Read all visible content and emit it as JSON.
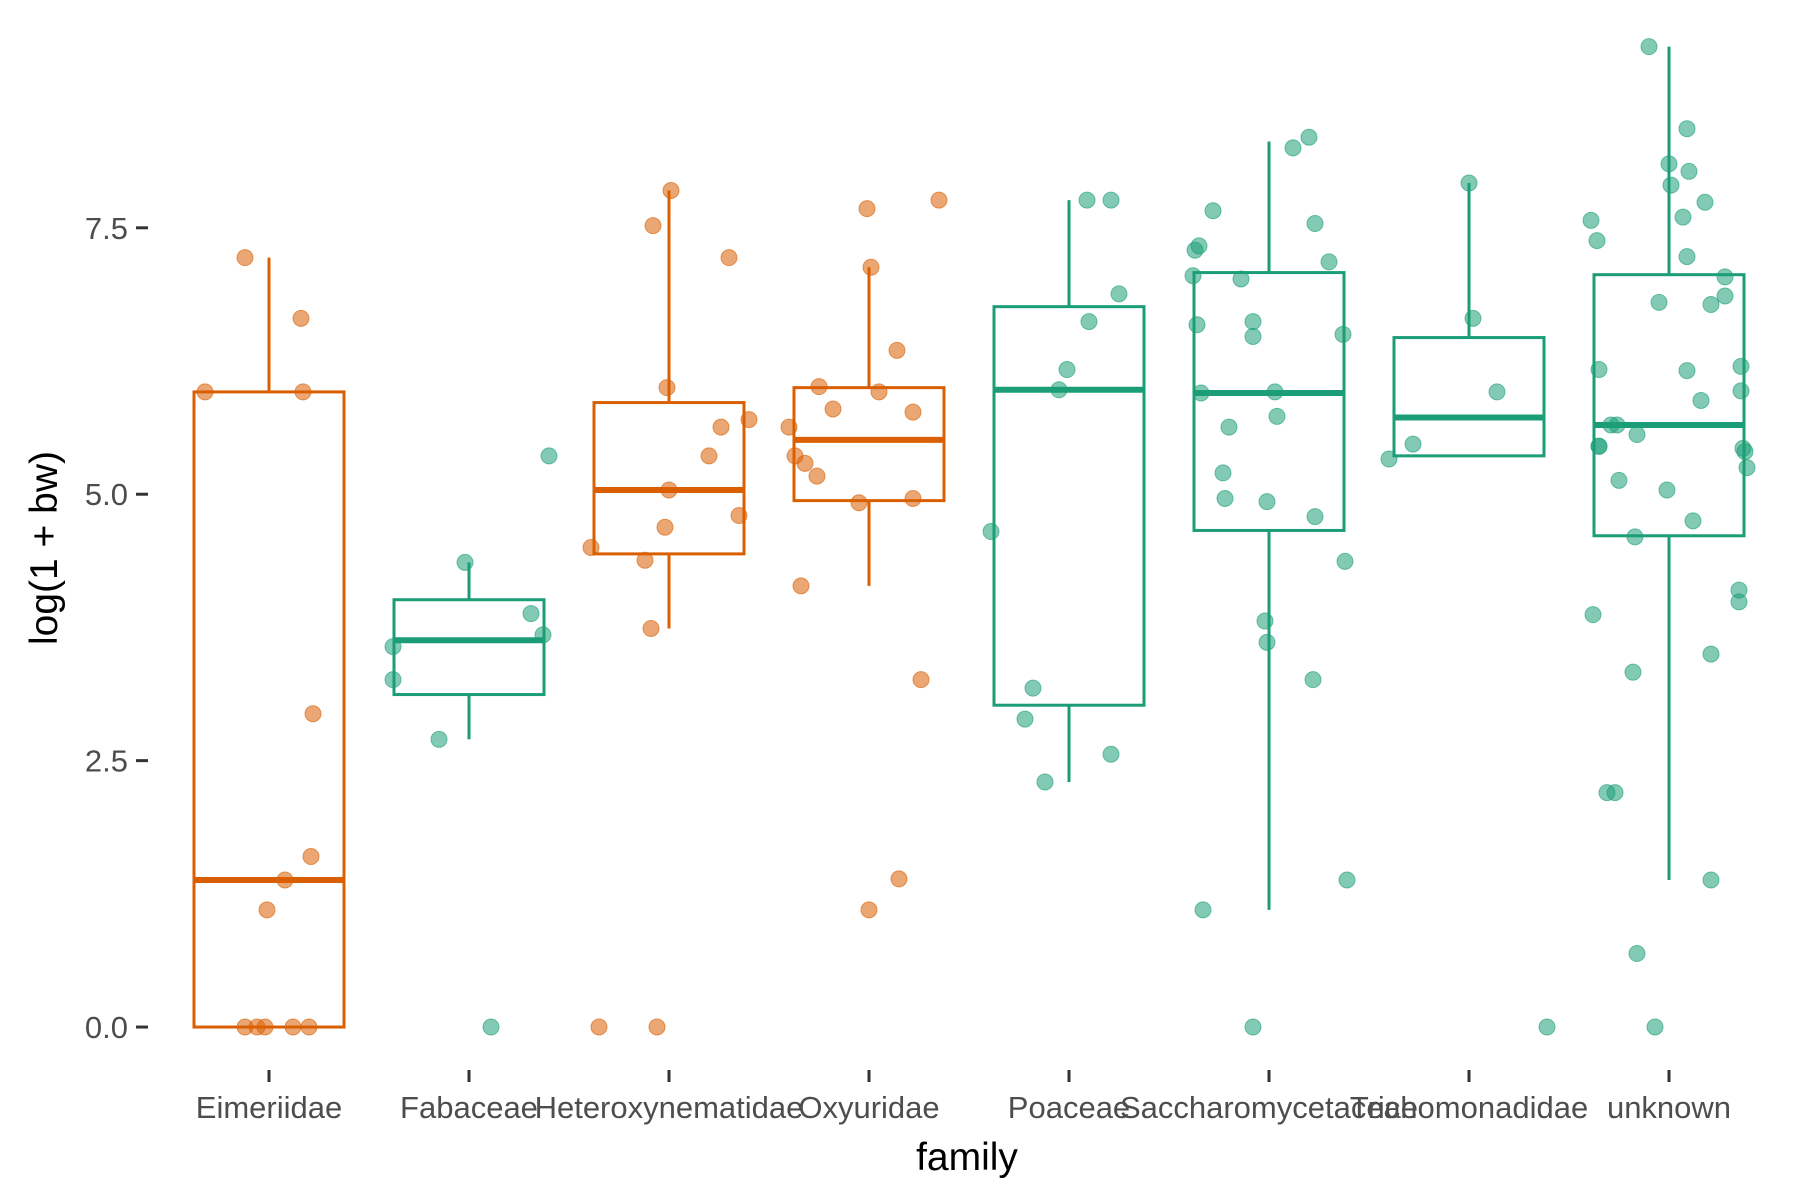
{
  "chart_data": {
    "type": "box",
    "xlabel": "family",
    "ylabel": "log(1 + bw)",
    "categories": [
      "Eimeriidae",
      "Fabaceae",
      "Heteroxynematidae",
      "Oxyuridae",
      "Poaceae",
      "Saccharomycetaceae",
      "Trichomonadidae",
      "unknown"
    ],
    "yticks": [
      0.0,
      2.5,
      5.0,
      7.5
    ],
    "ytick_labels": [
      "0.0",
      "2.5",
      "5.0",
      "7.5"
    ],
    "ylim": [
      -0.45,
      9.45
    ],
    "grid": false,
    "legend": "none",
    "group_colors": {
      "orange": "#d95f02",
      "green": "#1b9e77"
    },
    "boxes": [
      {
        "category": "Eimeriidae",
        "color_group": "orange",
        "whisker_low": 0.0,
        "q1": 0.0,
        "median": 1.38,
        "q3": 5.96,
        "whisker_high": 7.22,
        "points": [
          [
            -0.32,
            5.96
          ],
          [
            -0.12,
            0.0
          ],
          [
            -0.06,
            0.0
          ],
          [
            -0.02,
            0.0
          ],
          [
            0.12,
            0.0
          ],
          [
            -0.12,
            7.22
          ],
          [
            0.16,
            6.65
          ],
          [
            0.17,
            5.96
          ],
          [
            0.22,
            2.94
          ],
          [
            0.21,
            1.6
          ],
          [
            0.08,
            1.38
          ],
          [
            -0.01,
            1.1
          ],
          [
            0.2,
            0.0
          ]
        ]
      },
      {
        "category": "Fabaceae",
        "color_group": "green",
        "whisker_low": 2.7,
        "q1": 3.12,
        "median": 3.63,
        "q3": 4.01,
        "whisker_high": 4.36,
        "points": [
          [
            -0.38,
            3.57
          ],
          [
            -0.38,
            3.26
          ],
          [
            -0.15,
            2.7
          ],
          [
            -0.02,
            4.36
          ],
          [
            0.31,
            3.88
          ],
          [
            0.37,
            3.68
          ],
          [
            0.4,
            5.36
          ],
          [
            0.11,
            0.0
          ]
        ]
      },
      {
        "category": "Heteroxynematidae",
        "color_group": "orange",
        "whisker_low": 3.74,
        "q1": 4.44,
        "median": 5.04,
        "q3": 5.86,
        "whisker_high": 7.85,
        "points": [
          [
            -0.39,
            4.5
          ],
          [
            -0.35,
            0.0
          ],
          [
            -0.12,
            4.38
          ],
          [
            -0.09,
            3.74
          ],
          [
            -0.08,
            7.52
          ],
          [
            -0.06,
            0.0
          ],
          [
            -0.02,
            4.69
          ],
          [
            -0.01,
            6.0
          ],
          [
            0.0,
            5.04
          ],
          [
            0.01,
            7.85
          ],
          [
            0.2,
            5.36
          ],
          [
            0.26,
            5.63
          ],
          [
            0.3,
            7.22
          ],
          [
            0.35,
            4.8
          ],
          [
            0.4,
            5.7
          ]
        ]
      },
      {
        "category": "Oxyuridae",
        "color_group": "orange",
        "whisker_low": 4.14,
        "q1": 4.94,
        "median": 5.51,
        "q3": 6.0,
        "whisker_high": 7.13,
        "points": [
          [
            -0.4,
            5.63
          ],
          [
            -0.37,
            5.36
          ],
          [
            -0.34,
            4.14
          ],
          [
            -0.32,
            5.29
          ],
          [
            -0.26,
            5.17
          ],
          [
            -0.25,
            6.01
          ],
          [
            -0.18,
            5.8
          ],
          [
            -0.05,
            4.92
          ],
          [
            -0.01,
            7.68
          ],
          [
            -0.0,
            1.1
          ],
          [
            0.01,
            7.13
          ],
          [
            0.05,
            5.96
          ],
          [
            0.14,
            6.35
          ],
          [
            0.15,
            1.39
          ],
          [
            0.22,
            5.77
          ],
          [
            0.22,
            4.96
          ],
          [
            0.26,
            3.26
          ],
          [
            0.35,
            7.76
          ]
        ]
      },
      {
        "category": "Poaceae",
        "color_group": "green",
        "whisker_low": 2.3,
        "q1": 3.02,
        "median": 5.98,
        "q3": 6.76,
        "whisker_high": 7.76,
        "points": [
          [
            -0.39,
            4.65
          ],
          [
            -0.22,
            2.89
          ],
          [
            -0.18,
            3.18
          ],
          [
            -0.12,
            2.3
          ],
          [
            -0.05,
            5.98
          ],
          [
            -0.01,
            6.17
          ],
          [
            0.09,
            7.76
          ],
          [
            0.1,
            6.62
          ],
          [
            0.21,
            7.76
          ],
          [
            0.21,
            2.56
          ],
          [
            0.25,
            6.88
          ]
        ]
      },
      {
        "category": "Saccharomycetaceae",
        "color_group": "green",
        "whisker_low": 1.1,
        "q1": 4.66,
        "median": 5.95,
        "q3": 7.08,
        "whisker_high": 8.31,
        "points": [
          [
            -0.38,
            7.05
          ],
          [
            -0.37,
            7.29
          ],
          [
            -0.36,
            6.59
          ],
          [
            -0.35,
            7.33
          ],
          [
            -0.34,
            5.95
          ],
          [
            -0.33,
            1.1
          ],
          [
            -0.28,
            7.66
          ],
          [
            -0.22,
            4.96
          ],
          [
            -0.23,
            5.2
          ],
          [
            -0.2,
            5.63
          ],
          [
            -0.14,
            7.02
          ],
          [
            -0.08,
            6.48
          ],
          [
            -0.08,
            6.62
          ],
          [
            -0.08,
            0.0
          ],
          [
            -0.02,
            3.81
          ],
          [
            -0.01,
            3.61
          ],
          [
            -0.01,
            4.93
          ],
          [
            0.03,
            5.96
          ],
          [
            0.04,
            5.73
          ],
          [
            0.12,
            8.25
          ],
          [
            0.2,
            8.35
          ],
          [
            0.22,
            3.26
          ],
          [
            0.23,
            4.79
          ],
          [
            0.23,
            7.54
          ],
          [
            0.3,
            7.18
          ],
          [
            0.37,
            6.5
          ],
          [
            0.38,
            4.37
          ],
          [
            0.39,
            1.38
          ]
        ]
      },
      {
        "category": "Trichomonadidae",
        "color_group": "green",
        "whisker_low": 5.36,
        "q1": 5.36,
        "median": 5.72,
        "q3": 6.47,
        "whisker_high": 7.92,
        "points": [
          [
            -0.4,
            5.33
          ],
          [
            -0.28,
            5.47
          ],
          [
            0.02,
            6.65
          ],
          [
            0.0,
            7.92
          ],
          [
            0.14,
            5.96
          ],
          [
            0.39,
            0.0
          ]
        ]
      },
      {
        "category": "unknown",
        "color_group": "green",
        "whisker_low": 1.38,
        "q1": 4.61,
        "median": 5.65,
        "q3": 7.06,
        "whisker_high": 9.2,
        "points": [
          [
            -0.39,
            7.57
          ],
          [
            -0.38,
            3.87
          ],
          [
            -0.36,
            7.38
          ],
          [
            -0.35,
            6.17
          ],
          [
            -0.35,
            5.45
          ],
          [
            -0.35,
            5.45
          ],
          [
            -0.31,
            2.2
          ],
          [
            -0.29,
            5.65
          ],
          [
            -0.27,
            2.2
          ],
          [
            -0.26,
            5.65
          ],
          [
            -0.25,
            5.13
          ],
          [
            -0.18,
            3.33
          ],
          [
            -0.16,
            0.69
          ],
          [
            -0.17,
            4.6
          ],
          [
            -0.16,
            5.56
          ],
          [
            -0.07,
            0.0
          ],
          [
            -0.1,
            9.2
          ],
          [
            -0.05,
            6.8
          ],
          [
            -0.01,
            5.04
          ],
          [
            0.01,
            7.9
          ],
          [
            0.0,
            8.1
          ],
          [
            0.07,
            7.6
          ],
          [
            0.09,
            7.23
          ],
          [
            0.09,
            6.16
          ],
          [
            0.1,
            8.03
          ],
          [
            0.09,
            8.43
          ],
          [
            0.12,
            4.75
          ],
          [
            0.16,
            5.88
          ],
          [
            0.18,
            7.74
          ],
          [
            0.21,
            6.78
          ],
          [
            0.21,
            3.5
          ],
          [
            0.21,
            1.38
          ],
          [
            0.28,
            6.86
          ],
          [
            0.28,
            7.04
          ],
          [
            0.35,
            4.1
          ],
          [
            0.35,
            3.99
          ],
          [
            0.36,
            6.2
          ],
          [
            0.36,
            5.97
          ],
          [
            0.37,
            5.43
          ],
          [
            0.38,
            5.4
          ],
          [
            0.39,
            5.25
          ]
        ]
      }
    ]
  }
}
